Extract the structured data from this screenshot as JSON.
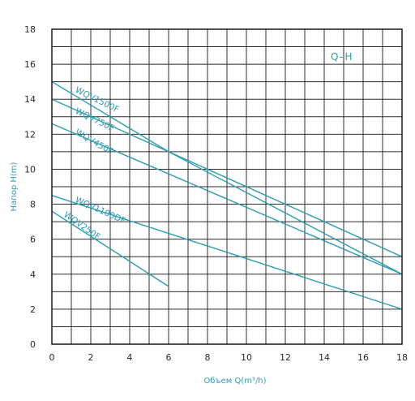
{
  "chart_data": {
    "type": "line",
    "title": "",
    "legend_text": "Q–H",
    "legend_placement": "top-right",
    "xlabel": "Объем Q(m³/h)",
    "ylabel": "Напор H(m)",
    "xlim": [
      0,
      18
    ],
    "ylim": [
      0,
      18
    ],
    "x_ticks": [
      0,
      2,
      4,
      6,
      8,
      10,
      12,
      14,
      16,
      18
    ],
    "y_ticks": [
      0,
      2,
      4,
      6,
      8,
      10,
      12,
      14,
      16,
      18
    ],
    "grid": true,
    "grid_step_x": 1,
    "grid_step_y": 1,
    "line_color": "#2a9db0",
    "series": [
      {
        "name": "WQV1500F",
        "x": [
          0,
          6,
          18
        ],
        "y": [
          15.0,
          11.0,
          4.0
        ]
      },
      {
        "name": "WQV750F",
        "x": [
          0,
          6,
          18
        ],
        "y": [
          14.0,
          11.0,
          5.0
        ]
      },
      {
        "name": "WQV450F",
        "x": [
          0,
          18
        ],
        "y": [
          12.6,
          4.0
        ]
      },
      {
        "name": "WQV1100DF",
        "x": [
          0,
          18
        ],
        "y": [
          8.5,
          2.0
        ]
      },
      {
        "name": "WQV250F",
        "x": [
          0,
          6
        ],
        "y": [
          7.6,
          3.3
        ]
      }
    ]
  }
}
